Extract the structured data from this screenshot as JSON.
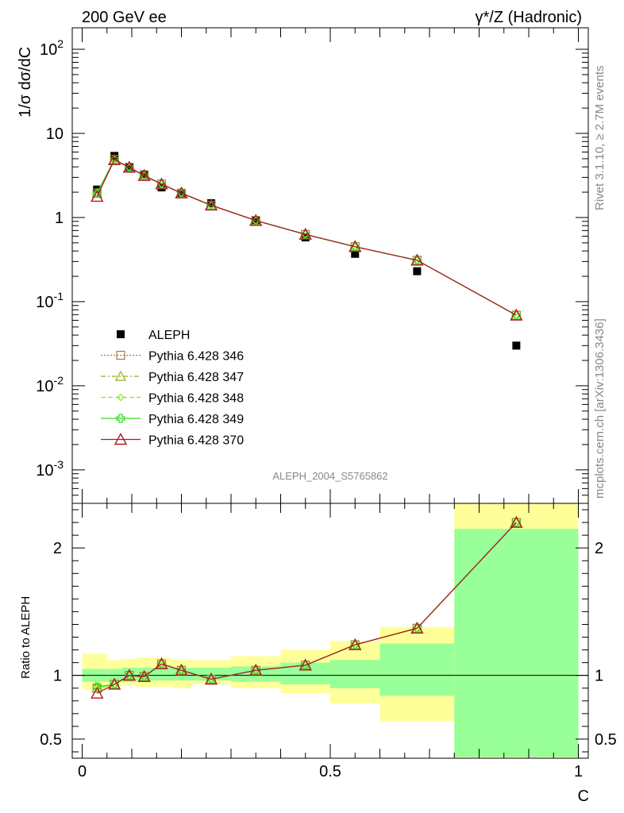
{
  "header": {
    "left": "200 GeV ee",
    "right": "γ*/Z (Hadronic)"
  },
  "side_text": {
    "upper": "Rivet 3.1.10, ≥ 2.7M events",
    "lower": "mcplots.cern.ch [arXiv:1306.3436]"
  },
  "analysis_label": "ALEPH_2004_S5765862",
  "colors": {
    "data": "#000000",
    "p346": "#b07838",
    "p347": "#9aaa18",
    "p348": "#88ee22",
    "p349": "#33dd22",
    "p370": "#aa1d2d",
    "band_inner": "#99ff99",
    "band_outer": "#ffff99"
  },
  "chart_data": [
    {
      "type": "scatter",
      "panel": "main",
      "scale": "log",
      "ylabel": "1/σ dσ/dC",
      "ylim": [
        0.0004,
        180
      ],
      "xlim": [
        -0.02,
        1.02
      ],
      "y_ticks": [
        {
          "value": 0.001,
          "base": "10",
          "exp": "-3"
        },
        {
          "value": 0.01,
          "base": "10",
          "exp": "-2"
        },
        {
          "value": 0.1,
          "base": "10",
          "exp": "-1"
        },
        {
          "value": 1,
          "base": "1",
          "exp": ""
        },
        {
          "value": 10,
          "base": "10",
          "exp": ""
        },
        {
          "value": 100,
          "base": "10",
          "exp": "2"
        }
      ],
      "legend_position": "center-left",
      "x": [
        0.03,
        0.065,
        0.095,
        0.125,
        0.16,
        0.2,
        0.26,
        0.35,
        0.45,
        0.55,
        0.675,
        0.875
      ],
      "series": [
        {
          "name": "ALEPH",
          "key": "data",
          "marker": "square",
          "values": [
            2.15,
            5.4,
            4.0,
            3.25,
            2.28,
            1.9,
            1.48,
            0.93,
            0.58,
            0.37,
            0.23,
            0.03
          ]
        },
        {
          "name": "Pythia 6.428 346",
          "key": "p346",
          "marker": "open-square",
          "dash": "2 2",
          "values": [
            1.95,
            4.9,
            3.95,
            3.15,
            2.5,
            1.95,
            1.4,
            0.92,
            0.63,
            0.45,
            0.31,
            0.069
          ]
        },
        {
          "name": "Pythia 6.428 347",
          "key": "p347",
          "marker": "triangle",
          "dash": "6 3 2 3",
          "values": [
            1.93,
            4.85,
            3.92,
            3.12,
            2.48,
            1.94,
            1.39,
            0.92,
            0.63,
            0.45,
            0.31,
            0.069
          ]
        },
        {
          "name": "Pythia 6.428 348",
          "key": "p348",
          "marker": "diamond",
          "dash": "6 3",
          "values": [
            1.94,
            4.88,
            3.93,
            3.14,
            2.49,
            1.95,
            1.4,
            0.92,
            0.63,
            0.45,
            0.31,
            0.069
          ]
        },
        {
          "name": "Pythia 6.428 349",
          "key": "p349",
          "marker": "cross",
          "dash": "",
          "values": [
            1.95,
            4.9,
            3.95,
            3.15,
            2.5,
            1.95,
            1.4,
            0.92,
            0.63,
            0.45,
            0.31,
            0.069
          ]
        },
        {
          "name": "Pythia 6.428 370",
          "key": "p370",
          "marker": "open-triangle",
          "dash": "",
          "values": [
            1.78,
            4.85,
            3.95,
            3.15,
            2.5,
            1.95,
            1.4,
            0.92,
            0.63,
            0.45,
            0.31,
            0.069
          ]
        }
      ]
    },
    {
      "type": "line",
      "panel": "ratio",
      "ylabel": "Ratio to ALEPH",
      "xlabel": "C",
      "ylim": [
        0.35,
        2.35
      ],
      "xlim": [
        -0.02,
        1.02
      ],
      "y_ticks": [
        0.5,
        1,
        2
      ],
      "x_ticks": [
        0,
        0.5,
        1
      ],
      "bands": {
        "bin_edges": [
          0.0,
          0.05,
          0.08,
          0.11,
          0.14,
          0.18,
          0.22,
          0.3,
          0.4,
          0.5,
          0.6,
          0.75,
          1.0
        ],
        "inner_low": [
          0.95,
          0.95,
          0.95,
          0.96,
          0.96,
          0.96,
          0.96,
          0.95,
          0.93,
          0.9,
          0.84,
          0.36
        ],
        "inner_high": [
          1.05,
          1.05,
          1.06,
          1.06,
          1.06,
          1.06,
          1.06,
          1.07,
          1.1,
          1.12,
          1.25,
          2.15
        ],
        "outer_low": [
          0.89,
          0.91,
          0.92,
          0.91,
          0.91,
          0.9,
          0.93,
          0.9,
          0.86,
          0.78,
          0.64,
          0.35
        ],
        "outer_high": [
          1.17,
          1.12,
          1.13,
          1.14,
          1.14,
          1.12,
          1.12,
          1.15,
          1.2,
          1.27,
          1.38,
          2.35
        ]
      },
      "x": [
        0.03,
        0.065,
        0.095,
        0.125,
        0.16,
        0.2,
        0.26,
        0.35,
        0.45,
        0.55,
        0.675,
        0.875
      ],
      "series": [
        {
          "name": "Pythia 6.428 346",
          "key": "p346",
          "marker": "open-square",
          "dash": "2 2",
          "values": [
            0.9,
            0.93,
            1.0,
            0.99,
            1.09,
            1.04,
            0.97,
            1.04,
            1.08,
            1.24,
            1.37,
            2.2
          ]
        },
        {
          "name": "Pythia 6.428 347",
          "key": "p347",
          "marker": "triangle",
          "dash": "6 3 2 3",
          "values": [
            0.9,
            0.93,
            1.0,
            0.99,
            1.09,
            1.04,
            0.97,
            1.04,
            1.08,
            1.24,
            1.37,
            2.2
          ]
        },
        {
          "name": "Pythia 6.428 348",
          "key": "p348",
          "marker": "diamond",
          "dash": "6 3",
          "values": [
            0.9,
            0.93,
            1.0,
            0.99,
            1.09,
            1.04,
            0.97,
            1.04,
            1.08,
            1.24,
            1.37,
            2.2
          ]
        },
        {
          "name": "Pythia 6.428 349",
          "key": "p349",
          "marker": "cross",
          "dash": "",
          "values": [
            0.91,
            0.93,
            1.0,
            0.99,
            1.09,
            1.04,
            0.97,
            1.04,
            1.08,
            1.24,
            1.37,
            2.2
          ]
        },
        {
          "name": "Pythia 6.428 370",
          "key": "p370",
          "marker": "open-triangle",
          "dash": "",
          "values": [
            0.86,
            0.93,
            1.0,
            0.99,
            1.09,
            1.04,
            0.97,
            1.04,
            1.08,
            1.24,
            1.37,
            2.2
          ]
        }
      ]
    }
  ]
}
